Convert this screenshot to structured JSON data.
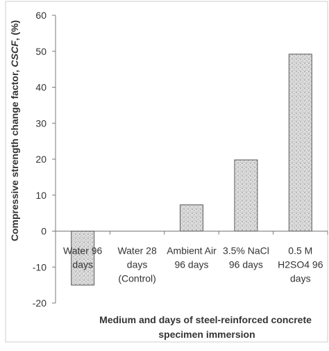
{
  "chart_data": {
    "type": "bar",
    "categories": [
      [
        "Water 96",
        "days"
      ],
      [
        "Water 28",
        "days",
        "(Control)"
      ],
      [
        "Ambient Air",
        "96 days"
      ],
      [
        "3.5% NaCl",
        "96 days"
      ],
      [
        "0.5 M",
        "H2SO4 96",
        "days"
      ]
    ],
    "values": [
      -15,
      0,
      7.3,
      19.8,
      49.2
    ],
    "ylim": [
      -20,
      60
    ],
    "yticks": [
      -20,
      -10,
      0,
      10,
      20,
      30,
      40,
      50,
      60
    ],
    "ylabel_prefix": "Compressive strength change factor, ",
    "ylabel_italic": "CSCF",
    "ylabel_suffix": ", (%)",
    "xlabel_lines": [
      "Medium and days of steel-reinforced concrete",
      "specimen immersion"
    ],
    "grid": false,
    "colors": {
      "bar_fill": "#d8d8d8",
      "bar_stroke": "#555555",
      "axis": "#777777",
      "frame": "#cccccc"
    }
  }
}
